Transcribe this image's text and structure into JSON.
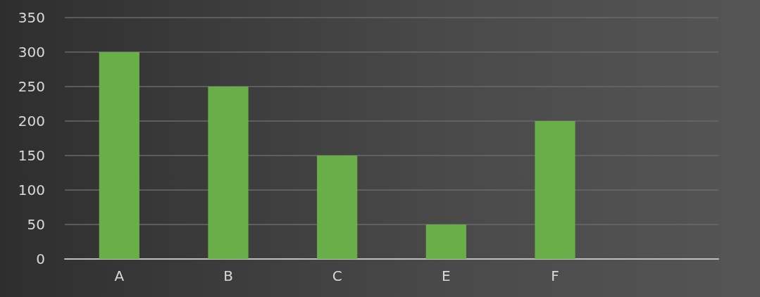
{
  "chart_data": {
    "type": "bar",
    "categories": [
      "A",
      "B",
      "C",
      "E",
      "F",
      null
    ],
    "values": [
      300,
      250,
      150,
      50,
      200,
      null
    ],
    "color": "#6aae4a",
    "ylim": [
      0,
      350
    ],
    "yticks": [
      0,
      50,
      100,
      150,
      200,
      250,
      300,
      350
    ],
    "grid": "y"
  }
}
